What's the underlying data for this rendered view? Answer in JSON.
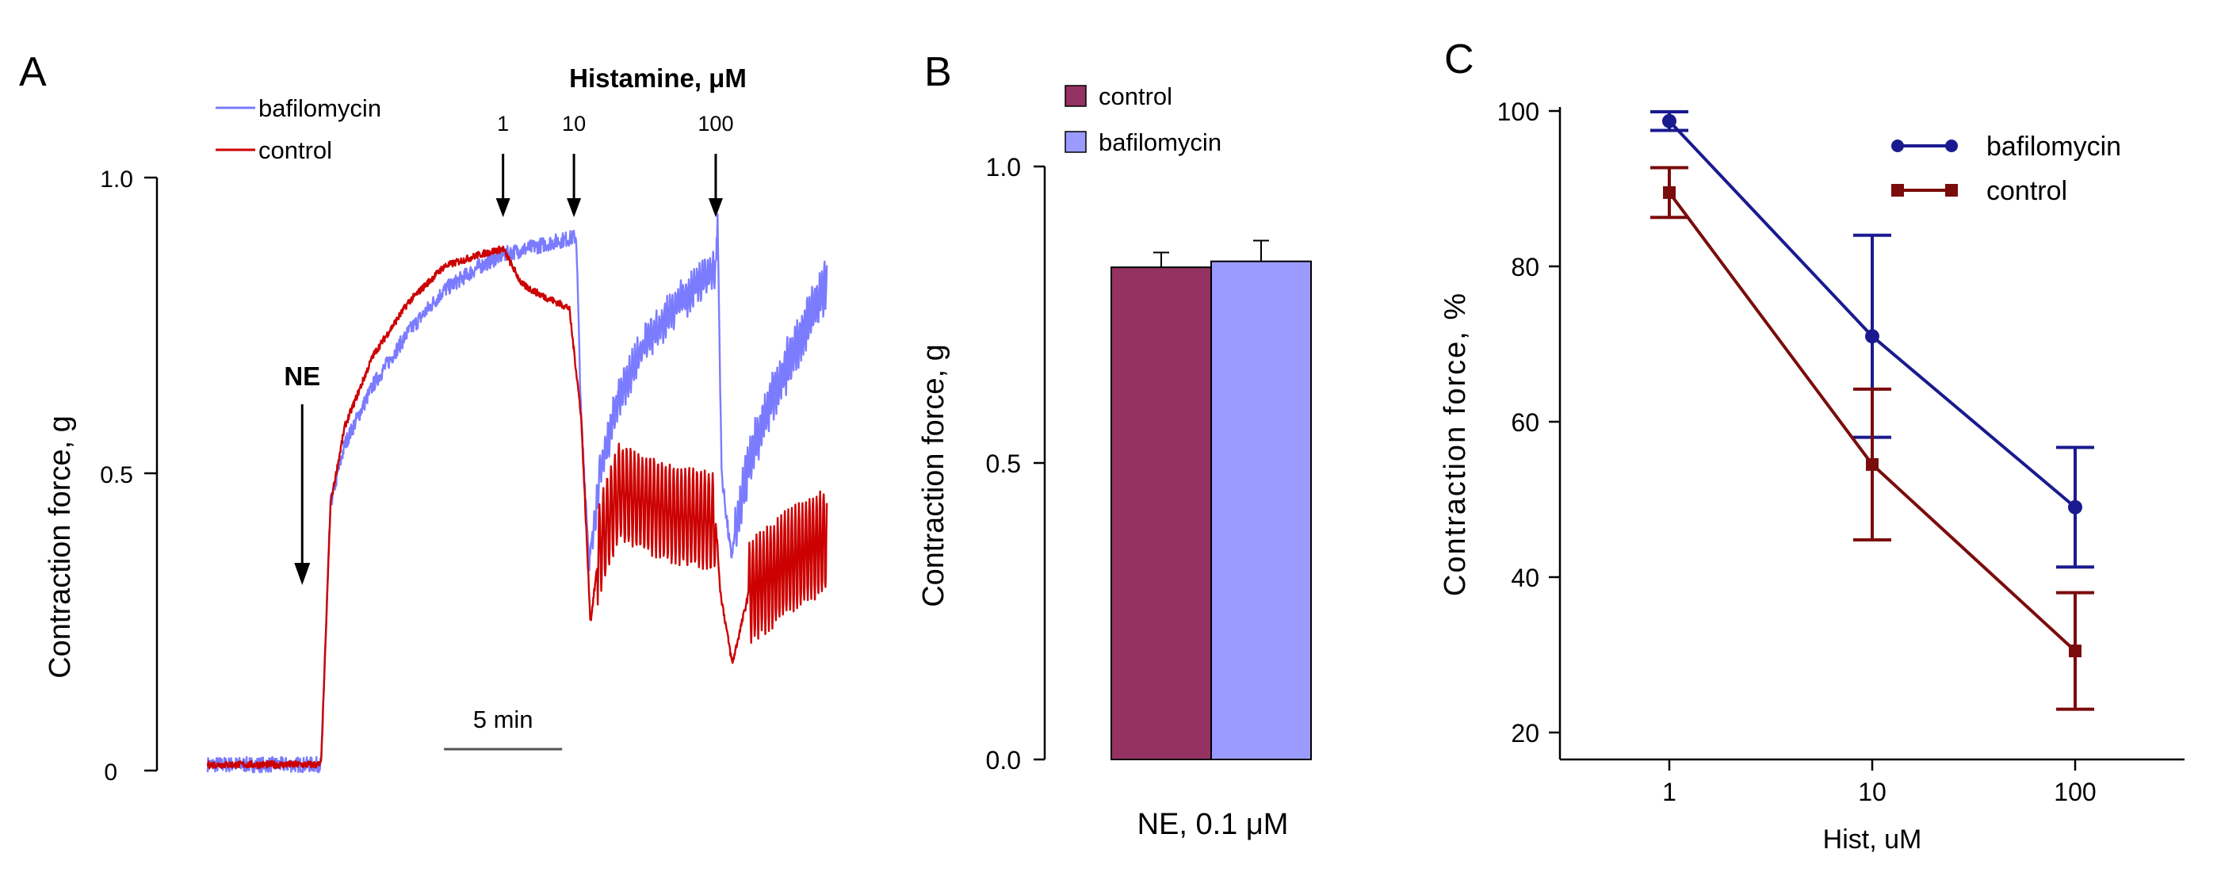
{
  "colors": {
    "bafilomycin_trace": "#7b7bff",
    "control_trace": "#cc0000",
    "bar_control": "#943262",
    "bar_bafilomycin": "#9b9bff",
    "line_bafilomycin": "#1a1a8f",
    "line_control": "#7a0c0c"
  },
  "panels": {
    "a": {
      "letter": "A"
    },
    "b": {
      "letter": "B"
    },
    "c": {
      "letter": "C"
    }
  },
  "chart_data": [
    {
      "panel": "A",
      "type": "line",
      "ylabel": "Contraction  force, g",
      "yticks": [
        {
          "value": 0,
          "label": "0"
        },
        {
          "value": 0.5,
          "label": "0.5"
        },
        {
          "value": 1.0,
          "label": "1.0"
        }
      ],
      "ylim": [
        0,
        1.0
      ],
      "x_unit": "min",
      "xlim": [
        0,
        26.5
      ],
      "scale_bar": {
        "label": "5 min",
        "from_min": 10,
        "to_min": 15
      },
      "legend": [
        "bafilomycin",
        "control"
      ],
      "annotations": {
        "ne_label": "NE",
        "ne_time_min": 4.0,
        "histamine_title": "Histamine, μM",
        "histamine_doses": [
          {
            "label": "1",
            "time_min": 12.5
          },
          {
            "label": "10",
            "time_min": 15.5
          },
          {
            "label": "100",
            "time_min": 21.5
          }
        ]
      },
      "series": [
        {
          "name": "bafilomycin",
          "color": "#7b7bff",
          "noise": 0.013,
          "points": [
            [
              0,
              0.01
            ],
            [
              4.8,
              0.01
            ],
            [
              5.2,
              0.45
            ],
            [
              5.8,
              0.55
            ],
            [
              7,
              0.65
            ],
            [
              8.5,
              0.74
            ],
            [
              10,
              0.81
            ],
            [
              11.5,
              0.85
            ],
            [
              12.5,
              0.87
            ],
            [
              13.5,
              0.88
            ],
            [
              14.5,
              0.89
            ],
            [
              15.6,
              0.9
            ],
            [
              15.8,
              0.6
            ],
            [
              16.15,
              0.35
            ],
            [
              16.6,
              0.5
            ],
            [
              17.3,
              0.62
            ],
            [
              18.5,
              0.72
            ],
            [
              20,
              0.79
            ],
            [
              21.5,
              0.85
            ],
            [
              21.58,
              0.93
            ],
            [
              21.75,
              0.5
            ],
            [
              22.15,
              0.36
            ],
            [
              22.9,
              0.52
            ],
            [
              24,
              0.64
            ],
            [
              25.2,
              0.74
            ],
            [
              26.2,
              0.82
            ]
          ]
        },
        {
          "name": "control",
          "color": "#cc0000",
          "noise": 0.006,
          "points": [
            [
              0,
              0.01
            ],
            [
              4.8,
              0.01
            ],
            [
              5.2,
              0.45
            ],
            [
              5.8,
              0.58
            ],
            [
              7,
              0.7
            ],
            [
              8.5,
              0.79
            ],
            [
              10,
              0.85
            ],
            [
              11.5,
              0.87
            ],
            [
              12.5,
              0.88
            ],
            [
              13.3,
              0.82
            ],
            [
              14.2,
              0.8
            ],
            [
              15.3,
              0.78
            ],
            [
              15.8,
              0.6
            ],
            [
              16.2,
              0.25
            ],
            [
              16.6,
              0.38
            ],
            [
              17.4,
              0.47
            ],
            [
              18.5,
              0.45
            ],
            [
              20,
              0.43
            ],
            [
              21.5,
              0.42
            ],
            [
              21.7,
              0.3
            ],
            [
              22.2,
              0.18
            ],
            [
              22.9,
              0.3
            ],
            [
              23.6,
              0.32
            ],
            [
              24.5,
              0.35
            ],
            [
              26.2,
              0.39
            ]
          ]
        }
      ]
    },
    {
      "panel": "B",
      "type": "bar",
      "ylabel": "Contraction force, g",
      "xlabel": "NE,  0.1 μM",
      "yticks": [
        {
          "value": 0.0,
          "label": "0.0"
        },
        {
          "value": 0.5,
          "label": "0.5"
        },
        {
          "value": 1.0,
          "label": "1.0"
        }
      ],
      "ylim": [
        0,
        1.0
      ],
      "series": [
        {
          "name": "control",
          "value": 0.83,
          "error": 0.025,
          "color": "#943262"
        },
        {
          "name": "bafilomycin",
          "value": 0.84,
          "error": 0.035,
          "color": "#9b9bff"
        }
      ]
    },
    {
      "panel": "C",
      "type": "line",
      "ylabel": "Contraction  force, %",
      "xlabel": "Hist, uM",
      "x_scale": "log",
      "xticks": [
        {
          "value": 1,
          "label": "1"
        },
        {
          "value": 10,
          "label": "10"
        },
        {
          "value": 100,
          "label": "100"
        }
      ],
      "yticks": [
        {
          "value": 20,
          "label": "20"
        },
        {
          "value": 40,
          "label": "40"
        },
        {
          "value": 60,
          "label": "60"
        },
        {
          "value": 80,
          "label": "80"
        },
        {
          "value": 100,
          "label": "100"
        }
      ],
      "ylim": [
        20,
        100
      ],
      "series": [
        {
          "name": "bafilomycin",
          "color": "#1a1a8f",
          "marker": "circle",
          "x": [
            1,
            10,
            100
          ],
          "y": [
            98.7,
            71,
            49
          ],
          "err": [
            1.2,
            13,
            7.7
          ]
        },
        {
          "name": "control",
          "color": "#7a0c0c",
          "marker": "square",
          "x": [
            1,
            10,
            100
          ],
          "y": [
            89.5,
            54.5,
            30.5
          ],
          "err": [
            3.2,
            9.7,
            7.5
          ]
        }
      ]
    }
  ]
}
